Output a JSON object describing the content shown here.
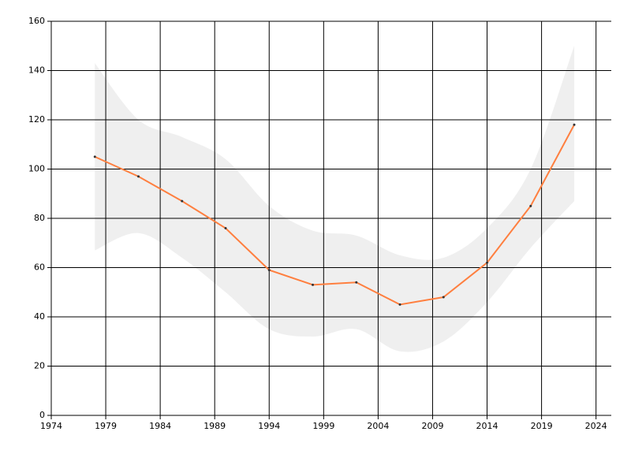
{
  "chart_data": {
    "type": "line",
    "x": [
      1978,
      1982,
      1986,
      1990,
      1994,
      1998,
      2002,
      2006,
      2010,
      2014,
      2018,
      2022
    ],
    "series": [
      {
        "color": "#ff7f3f",
        "values": [
          105,
          97,
          87,
          76,
          59,
          53,
          54,
          45,
          48,
          62,
          85,
          118
        ]
      }
    ],
    "band": {
      "color": "#efefef",
      "upper": [
        143,
        120,
        113,
        104,
        85,
        75,
        73,
        65,
        64,
        76,
        100,
        150
      ],
      "lower": [
        67,
        74,
        64,
        50,
        35,
        32,
        35,
        26,
        30,
        46,
        68,
        87
      ]
    },
    "xlim": [
      1974,
      2025.4
    ],
    "xticks": [
      1974,
      1979,
      1984,
      1989,
      1994,
      1999,
      2004,
      2009,
      2014,
      2019,
      2024
    ],
    "ylim": [
      0,
      160
    ],
    "yticks": [
      0,
      20,
      40,
      60,
      80,
      100,
      120,
      140,
      160
    ],
    "grid": true
  }
}
